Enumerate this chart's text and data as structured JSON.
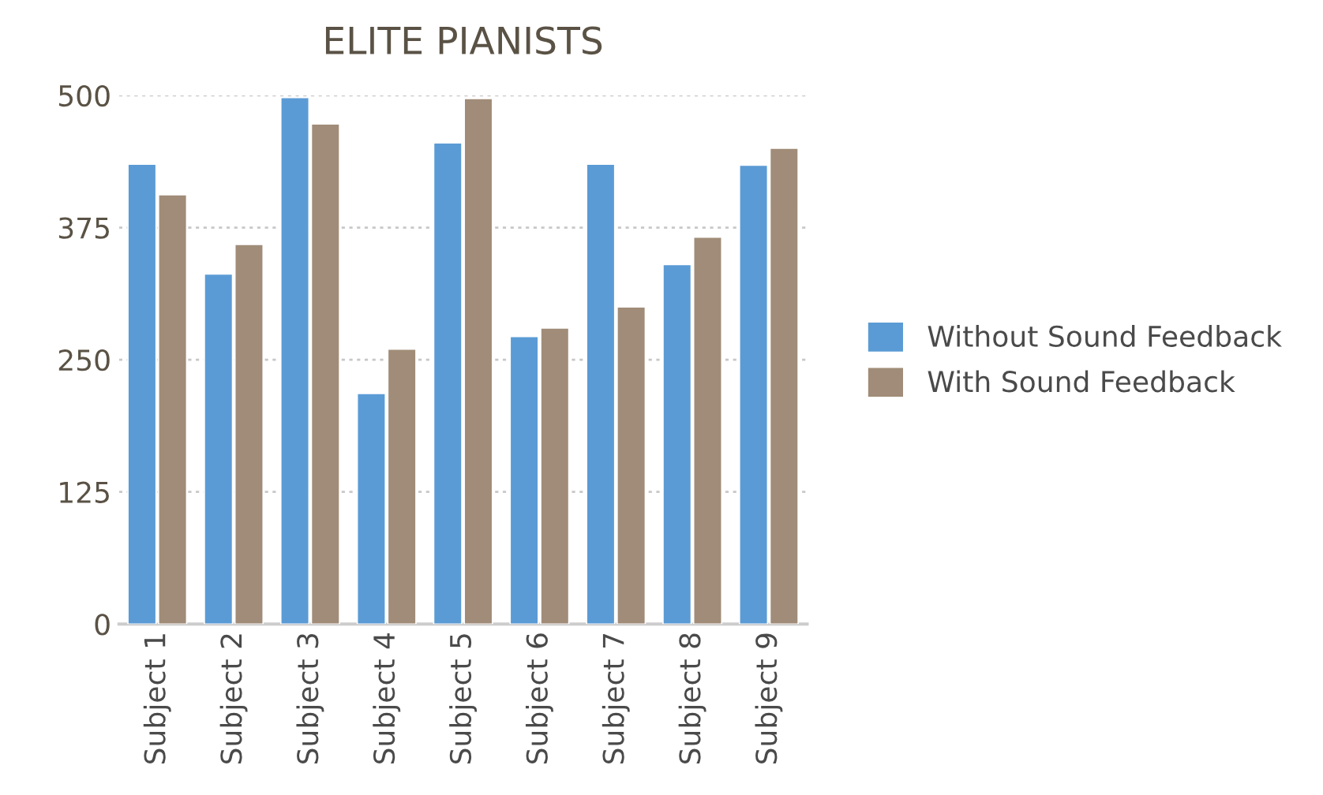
{
  "chart_data": {
    "type": "bar",
    "title": "ELITE PIANISTS",
    "categories": [
      "Subject 1",
      "Subject 2",
      "Subject 3",
      "Subject 4",
      "Subject 5",
      "Subject 6",
      "Subject 7",
      "Subject 8",
      "Subject 9"
    ],
    "series": [
      {
        "name": "Without Sound Feedback",
        "color": "#5b9bd5",
        "values": [
          435,
          331,
          498,
          218,
          455,
          272,
          435,
          340,
          434
        ]
      },
      {
        "name": "With Sound Feedback",
        "color": "#a08c78",
        "values": [
          406,
          359,
          473,
          260,
          497,
          280,
          300,
          366,
          450
        ]
      }
    ],
    "ylim": [
      0,
      500
    ],
    "yticks": [
      0,
      125,
      250,
      375,
      500
    ],
    "grid": "y",
    "legend": "right"
  }
}
